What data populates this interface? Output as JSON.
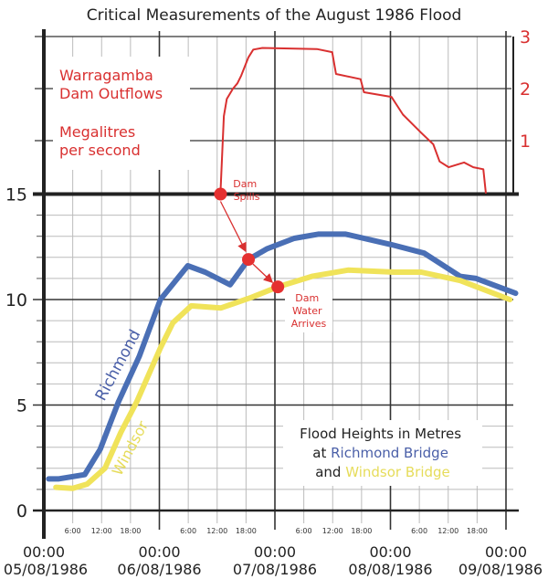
{
  "chart_data": {
    "type": "line",
    "title": "Critical Measurements of the August 1986 Flood",
    "x_unit": "hours since 00:00 05/08/1986",
    "xlim": [
      0,
      96
    ],
    "x_major_ticks": [
      {
        "time": "00:00",
        "date": "05/08/1986"
      },
      {
        "time": "00:00",
        "date": "06/08/1986"
      },
      {
        "time": "00:00",
        "date": "07/08/1986"
      },
      {
        "time": "00:00",
        "date": "08/08/1986"
      },
      {
        "time": "00:00",
        "date": "09/08/1986"
      }
    ],
    "x_minor_ticks": [
      "6:00",
      "12:00",
      "18:00"
    ],
    "y_left": {
      "label": "Flood Heights in Metres",
      "ylim": [
        0,
        15
      ],
      "ticks": [
        "0",
        "5",
        "10",
        "15"
      ]
    },
    "y_right": {
      "label": "Megalitres per second",
      "ylim": [
        0,
        3
      ],
      "ticks": [
        "1",
        "2",
        "3"
      ]
    },
    "flow_label": {
      "line1": "Warragamba",
      "line2": "Dam  Outflows",
      "line3": "Megalitres",
      "line4": "per second"
    },
    "legend": {
      "line1": "Flood Heights in Metres",
      "at": "at ",
      "richmond": "Richmond Bridge",
      "and": "and ",
      "windsor": "Windsor Bridge"
    },
    "series": [
      {
        "name": "Richmond",
        "color": "#4a6fb5",
        "axis": "left",
        "x": [
          1,
          3,
          8.5,
          11.7,
          15.5,
          19.8,
          24.2,
          29.9,
          33.5,
          38.7,
          42.5,
          46.3,
          52,
          57,
          62.7,
          72.2,
          79,
          86.5,
          89.8,
          98
        ],
        "y": [
          1.5,
          1.5,
          1.7,
          2.9,
          5.15,
          7.3,
          10.0,
          11.6,
          11.3,
          10.7,
          11.9,
          12.4,
          12.9,
          13.1,
          13.1,
          12.6,
          12.2,
          11.1,
          11.0,
          10.3
        ]
      },
      {
        "name": "Windsor",
        "color": "#f0e35a",
        "axis": "left",
        "x": [
          2.5,
          6,
          9,
          12.7,
          16,
          19.3,
          24.2,
          26.8,
          30.6,
          36.8,
          43.1,
          48.6,
          55.7,
          63.3,
          72.8,
          78.4,
          86.5,
          96.8
        ],
        "y": [
          1.1,
          1.05,
          1.25,
          2.0,
          3.7,
          5.15,
          7.7,
          8.9,
          9.7,
          9.6,
          10.1,
          10.6,
          11.1,
          11.4,
          11.3,
          11.3,
          10.9,
          10.0
        ]
      },
      {
        "name": "Warragamba Dam Outflows",
        "color": "#d93030",
        "axis": "right",
        "x": [
          36.7,
          37.4,
          38,
          39.3,
          40.2,
          41,
          42.5,
          43.5,
          45.4,
          56.7,
          59.9,
          60.7,
          65.8,
          66.5,
          72.2,
          74.6,
          78.4,
          80.9,
          82.2,
          84.1,
          87.3,
          89.2,
          91.3,
          91.8
        ],
        "y": [
          0,
          1.47,
          1.8,
          2.0,
          2.1,
          2.25,
          2.6,
          2.75,
          2.78,
          2.76,
          2.7,
          2.28,
          2.18,
          1.93,
          1.84,
          1.5,
          1.15,
          0.93,
          0.6,
          0.49,
          0.58,
          0.49,
          0.45,
          0
        ]
      }
    ],
    "annotations": [
      {
        "label1": "Dam",
        "label2": "Spills",
        "x": 36.7,
        "y_metres": 15
      },
      {
        "x": 42.5,
        "y_metres": 11.9
      },
      {
        "label1": "Dam",
        "label2": "Water",
        "label3": "Arrives",
        "x": 48.6,
        "y_metres": 10.6
      }
    ],
    "grid": true
  }
}
